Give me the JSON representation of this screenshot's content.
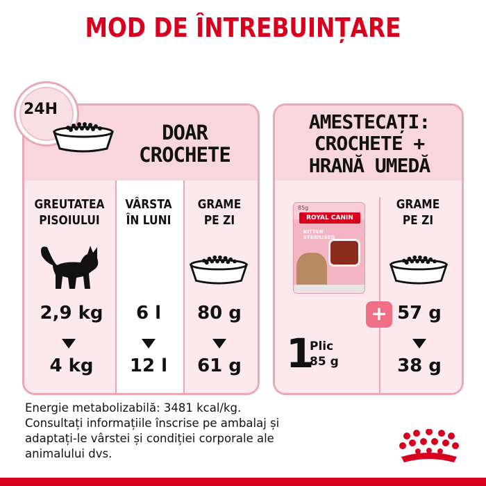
{
  "title": "MOD DE ÎNTREBUINȚARE",
  "clock": {
    "label": "24H",
    "icon": "clock-icon"
  },
  "left_panel": {
    "heading_line1": "DOAR",
    "heading_line2": "CROCHETE",
    "columns": [
      {
        "label_line1": "GREUTATEA",
        "label_line2": "PISOIULUI",
        "from": "2,9 kg",
        "to": "4 kg",
        "icon": "kitten-icon"
      },
      {
        "label_line1": "VÂRSTA",
        "label_line2": "ÎN LUNI",
        "from": "6 l",
        "to": "12 l"
      },
      {
        "label_line1": "GRAME",
        "label_line2": "PE ZI",
        "from": "80 g",
        "to": "61 g",
        "icon": "kibble-bowl-icon"
      }
    ]
  },
  "right_panel": {
    "heading_line1": "AMESTECAȚI:",
    "heading_line2": "CROCHETE +",
    "heading_line3": "HRANĂ UMEDĂ",
    "pouch": {
      "weight": "85g",
      "brand": "ROYAL CANIN",
      "variant_line1": "KITTEN",
      "variant_line2": "STERILISED",
      "icon": "wet-food-pouch-icon"
    },
    "plic": {
      "count": "1",
      "label": "Plic",
      "weight": "85 g"
    },
    "plus_sign": "+",
    "grams_column": {
      "label_line1": "GRAME",
      "label_line2": "PE ZI",
      "from": "57 g",
      "to": "38 g",
      "icon": "kibble-bowl-icon"
    }
  },
  "footnote": {
    "line1": "Energie metabolizabilă: 3481 kcal/kg.",
    "line2": "Consultați informațiile înscrise pe ambalaj și",
    "line3": "adaptați-le vârstei și condiției corporale ale",
    "line4": "animalului dvs."
  },
  "colors": {
    "brand_red": "#d8001f",
    "panel_pink": "#f7d6dd",
    "panel_light": "#fbe9ed",
    "border_pink": "#e9a8b4",
    "plus_pink": "#ef6f86"
  },
  "logo": {
    "icon": "royal-canin-crown-logo"
  }
}
